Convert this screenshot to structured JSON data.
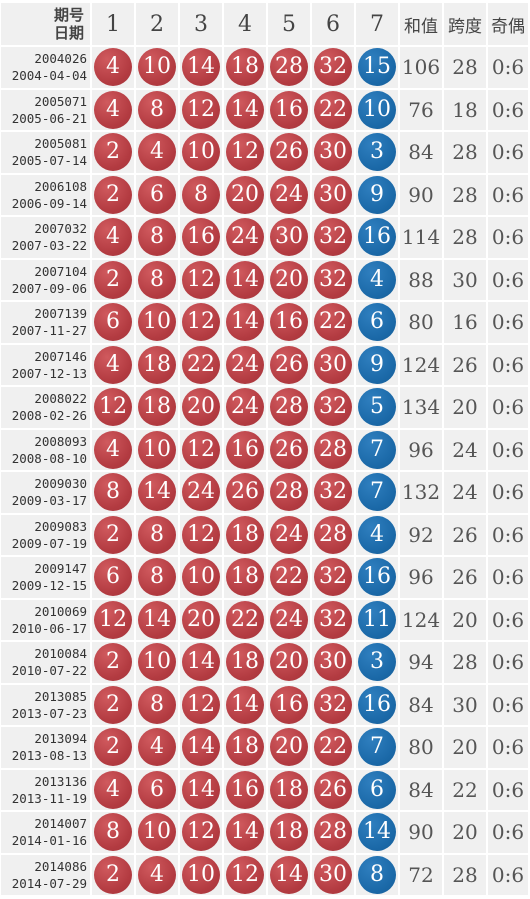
{
  "header": {
    "issue_label": "期号",
    "date_label": "日期",
    "columns": [
      "1",
      "2",
      "3",
      "4",
      "5",
      "6",
      "7"
    ],
    "sum_label": "和值",
    "span_label": "跨度",
    "odd_even_label": "奇偶"
  },
  "colors": {
    "red_ball": "#b33b41",
    "blue_ball": "#1b69a8",
    "cell_bg": "#f0f0f0"
  },
  "rows": [
    {
      "issue": "2004026",
      "date": "2004-04-04",
      "balls": [
        "4",
        "10",
        "14",
        "18",
        "28",
        "32",
        "15"
      ],
      "sum": "106",
      "span": "28",
      "odd_even": "0:6"
    },
    {
      "issue": "2005071",
      "date": "2005-06-21",
      "balls": [
        "4",
        "8",
        "12",
        "14",
        "16",
        "22",
        "10"
      ],
      "sum": "76",
      "span": "18",
      "odd_even": "0:6"
    },
    {
      "issue": "2005081",
      "date": "2005-07-14",
      "balls": [
        "2",
        "4",
        "10",
        "12",
        "26",
        "30",
        "3"
      ],
      "sum": "84",
      "span": "28",
      "odd_even": "0:6"
    },
    {
      "issue": "2006108",
      "date": "2006-09-14",
      "balls": [
        "2",
        "6",
        "8",
        "20",
        "24",
        "30",
        "9"
      ],
      "sum": "90",
      "span": "28",
      "odd_even": "0:6"
    },
    {
      "issue": "2007032",
      "date": "2007-03-22",
      "balls": [
        "4",
        "8",
        "16",
        "24",
        "30",
        "32",
        "16"
      ],
      "sum": "114",
      "span": "28",
      "odd_even": "0:6"
    },
    {
      "issue": "2007104",
      "date": "2007-09-06",
      "balls": [
        "2",
        "8",
        "12",
        "14",
        "20",
        "32",
        "4"
      ],
      "sum": "88",
      "span": "30",
      "odd_even": "0:6"
    },
    {
      "issue": "2007139",
      "date": "2007-11-27",
      "balls": [
        "6",
        "10",
        "12",
        "14",
        "16",
        "22",
        "6"
      ],
      "sum": "80",
      "span": "16",
      "odd_even": "0:6"
    },
    {
      "issue": "2007146",
      "date": "2007-12-13",
      "balls": [
        "4",
        "18",
        "22",
        "24",
        "26",
        "30",
        "9"
      ],
      "sum": "124",
      "span": "26",
      "odd_even": "0:6"
    },
    {
      "issue": "2008022",
      "date": "2008-02-26",
      "balls": [
        "12",
        "18",
        "20",
        "24",
        "28",
        "32",
        "5"
      ],
      "sum": "134",
      "span": "20",
      "odd_even": "0:6"
    },
    {
      "issue": "2008093",
      "date": "2008-08-10",
      "balls": [
        "4",
        "10",
        "12",
        "16",
        "26",
        "28",
        "7"
      ],
      "sum": "96",
      "span": "24",
      "odd_even": "0:6"
    },
    {
      "issue": "2009030",
      "date": "2009-03-17",
      "balls": [
        "8",
        "14",
        "24",
        "26",
        "28",
        "32",
        "7"
      ],
      "sum": "132",
      "span": "24",
      "odd_even": "0:6"
    },
    {
      "issue": "2009083",
      "date": "2009-07-19",
      "balls": [
        "2",
        "8",
        "12",
        "18",
        "24",
        "28",
        "4"
      ],
      "sum": "92",
      "span": "26",
      "odd_even": "0:6"
    },
    {
      "issue": "2009147",
      "date": "2009-12-15",
      "balls": [
        "6",
        "8",
        "10",
        "18",
        "22",
        "32",
        "16"
      ],
      "sum": "96",
      "span": "26",
      "odd_even": "0:6"
    },
    {
      "issue": "2010069",
      "date": "2010-06-17",
      "balls": [
        "12",
        "14",
        "20",
        "22",
        "24",
        "32",
        "11"
      ],
      "sum": "124",
      "span": "20",
      "odd_even": "0:6"
    },
    {
      "issue": "2010084",
      "date": "2010-07-22",
      "balls": [
        "2",
        "10",
        "14",
        "18",
        "20",
        "30",
        "3"
      ],
      "sum": "94",
      "span": "28",
      "odd_even": "0:6"
    },
    {
      "issue": "2013085",
      "date": "2013-07-23",
      "balls": [
        "2",
        "8",
        "12",
        "14",
        "16",
        "32",
        "16"
      ],
      "sum": "84",
      "span": "30",
      "odd_even": "0:6"
    },
    {
      "issue": "2013094",
      "date": "2013-08-13",
      "balls": [
        "2",
        "4",
        "14",
        "18",
        "20",
        "22",
        "7"
      ],
      "sum": "80",
      "span": "20",
      "odd_even": "0:6"
    },
    {
      "issue": "2013136",
      "date": "2013-11-19",
      "balls": [
        "4",
        "6",
        "14",
        "16",
        "18",
        "26",
        "6"
      ],
      "sum": "84",
      "span": "22",
      "odd_even": "0:6"
    },
    {
      "issue": "2014007",
      "date": "2014-01-16",
      "balls": [
        "8",
        "10",
        "12",
        "14",
        "18",
        "28",
        "14"
      ],
      "sum": "90",
      "span": "20",
      "odd_even": "0:6"
    },
    {
      "issue": "2014086",
      "date": "2014-07-29",
      "balls": [
        "2",
        "4",
        "10",
        "12",
        "14",
        "30",
        "8"
      ],
      "sum": "72",
      "span": "28",
      "odd_even": "0:6"
    }
  ]
}
